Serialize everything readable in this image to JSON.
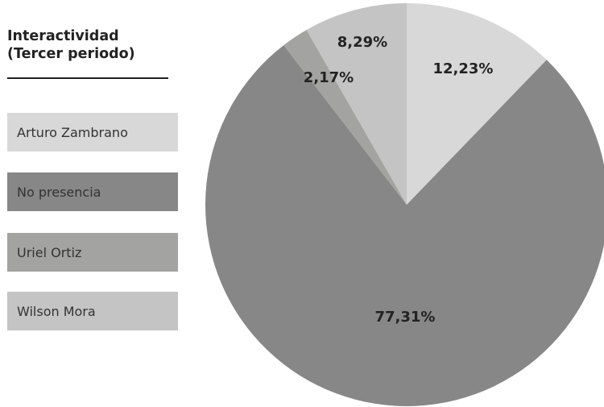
{
  "legend_title": {
    "line1": "Interactividad",
    "line2": "(Tercer periodo)"
  },
  "chart_data": {
    "type": "pie",
    "title": "Interactividad (Tercer periodo)",
    "slices": [
      {
        "name": "Arturo Zambrano",
        "value": 12.23,
        "label": "12,23%",
        "color": "#d8d8d8"
      },
      {
        "name": "No presencia",
        "value": 77.31,
        "label": "77,31%",
        "color": "#878787"
      },
      {
        "name": "Uriel Ortiz",
        "value": 2.17,
        "label": "2,17%",
        "color": "#a3a3a1"
      },
      {
        "name": "Wilson Mora",
        "value": 8.29,
        "label": "8,29%",
        "color": "#c4c4c4"
      }
    ],
    "start_angle_deg": 0,
    "direction": "clockwise",
    "legend_position": "left"
  }
}
